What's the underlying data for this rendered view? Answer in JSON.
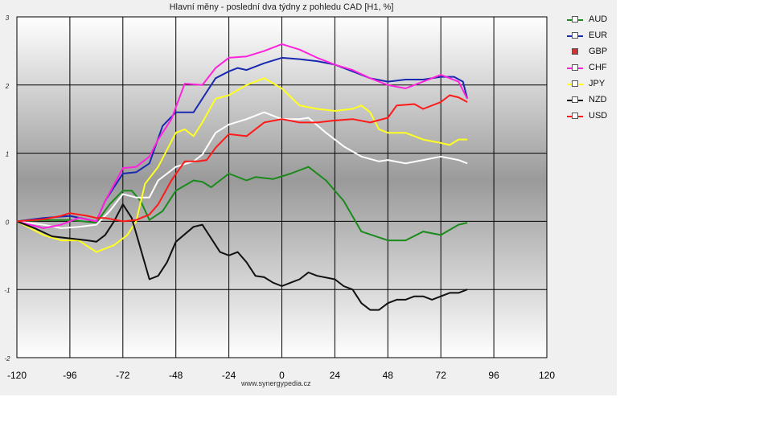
{
  "chart_data": {
    "type": "line",
    "title": "Hlavní měny - poslední dva týdny z pohledu CAD [H1, %]",
    "xlim": [
      -120,
      120
    ],
    "ylim": [
      -2,
      3
    ],
    "x_ticks": [
      -120,
      -96,
      -72,
      -48,
      -24,
      0,
      24,
      48,
      72,
      96,
      120
    ],
    "y_ticks": [
      3,
      2,
      1,
      0,
      -1,
      -2
    ],
    "x_tick_labels": [
      "-120",
      "-96",
      "-72",
      "-48",
      "-24",
      "0",
      "24",
      "48",
      "72",
      "96",
      "120"
    ],
    "y_tick_labels": [
      "3",
      "2",
      "1",
      "0",
      "-1",
      "-2"
    ],
    "grid": true,
    "legend_position": "right",
    "series": [
      {
        "name": "AUD",
        "color": "#1a8a1a",
        "points": [
          [
            -120,
            0
          ],
          [
            -108,
            0.02
          ],
          [
            -96,
            0.02
          ],
          [
            -84,
            -0.02
          ],
          [
            -78,
            0.25
          ],
          [
            -72,
            0.45
          ],
          [
            -68,
            0.45
          ],
          [
            -64,
            0.3
          ],
          [
            -60,
            0.02
          ],
          [
            -54,
            0.15
          ],
          [
            -48,
            0.45
          ],
          [
            -40,
            0.6
          ],
          [
            -36,
            0.58
          ],
          [
            -32,
            0.5
          ],
          [
            -24,
            0.7
          ],
          [
            -16,
            0.6
          ],
          [
            -12,
            0.65
          ],
          [
            -4,
            0.62
          ],
          [
            4,
            0.7
          ],
          [
            12,
            0.8
          ],
          [
            20,
            0.6
          ],
          [
            28,
            0.3
          ],
          [
            36,
            -0.15
          ],
          [
            48,
            -0.28
          ],
          [
            56,
            -0.28
          ],
          [
            64,
            -0.15
          ],
          [
            72,
            -0.2
          ],
          [
            80,
            -0.05
          ],
          [
            84,
            -0.02
          ]
        ]
      },
      {
        "name": "EUR",
        "color": "#1a2ab0",
        "points": [
          [
            -120,
            0
          ],
          [
            -108,
            0.05
          ],
          [
            -96,
            0.08
          ],
          [
            -84,
            0
          ],
          [
            -80,
            0.3
          ],
          [
            -72,
            0.7
          ],
          [
            -66,
            0.72
          ],
          [
            -60,
            0.85
          ],
          [
            -54,
            1.4
          ],
          [
            -48,
            1.6
          ],
          [
            -40,
            1.6
          ],
          [
            -36,
            1.8
          ],
          [
            -30,
            2.1
          ],
          [
            -24,
            2.2
          ],
          [
            -20,
            2.25
          ],
          [
            -16,
            2.22
          ],
          [
            -8,
            2.32
          ],
          [
            0,
            2.4
          ],
          [
            8,
            2.38
          ],
          [
            16,
            2.35
          ],
          [
            24,
            2.3
          ],
          [
            32,
            2.2
          ],
          [
            40,
            2.1
          ],
          [
            48,
            2.05
          ],
          [
            56,
            2.08
          ],
          [
            64,
            2.08
          ],
          [
            72,
            2.12
          ],
          [
            78,
            2.12
          ],
          [
            82,
            2.05
          ],
          [
            84,
            1.8
          ]
        ]
      },
      {
        "name": "GBP",
        "color": "#ffffff",
        "points": [
          [
            -120,
            0
          ],
          [
            -108,
            -0.05
          ],
          [
            -100,
            -0.1
          ],
          [
            -92,
            -0.08
          ],
          [
            -84,
            -0.05
          ],
          [
            -78,
            0.15
          ],
          [
            -72,
            0.4
          ],
          [
            -66,
            0.35
          ],
          [
            -60,
            0.35
          ],
          [
            -56,
            0.6
          ],
          [
            -48,
            0.8
          ],
          [
            -40,
            0.88
          ],
          [
            -36,
            0.98
          ],
          [
            -30,
            1.3
          ],
          [
            -24,
            1.42
          ],
          [
            -16,
            1.5
          ],
          [
            -8,
            1.6
          ],
          [
            0,
            1.5
          ],
          [
            8,
            1.5
          ],
          [
            12,
            1.52
          ],
          [
            20,
            1.3
          ],
          [
            28,
            1.1
          ],
          [
            36,
            0.95
          ],
          [
            44,
            0.88
          ],
          [
            48,
            0.9
          ],
          [
            56,
            0.85
          ],
          [
            64,
            0.9
          ],
          [
            72,
            0.95
          ],
          [
            80,
            0.9
          ],
          [
            84,
            0.85
          ]
        ]
      },
      {
        "name": "CHF",
        "color": "#ff22dd",
        "points": [
          [
            -120,
            0
          ],
          [
            -108,
            -0.1
          ],
          [
            -100,
            -0.05
          ],
          [
            -92,
            0.05
          ],
          [
            -84,
            0
          ],
          [
            -80,
            0.3
          ],
          [
            -72,
            0.78
          ],
          [
            -66,
            0.8
          ],
          [
            -60,
            0.95
          ],
          [
            -56,
            1.2
          ],
          [
            -50,
            1.5
          ],
          [
            -44,
            2.02
          ],
          [
            -36,
            2.0
          ],
          [
            -30,
            2.25
          ],
          [
            -24,
            2.4
          ],
          [
            -16,
            2.42
          ],
          [
            -8,
            2.5
          ],
          [
            0,
            2.6
          ],
          [
            8,
            2.52
          ],
          [
            16,
            2.4
          ],
          [
            24,
            2.3
          ],
          [
            32,
            2.22
          ],
          [
            40,
            2.1
          ],
          [
            48,
            2.0
          ],
          [
            56,
            1.95
          ],
          [
            64,
            2.05
          ],
          [
            72,
            2.15
          ],
          [
            80,
            2.05
          ],
          [
            84,
            1.8
          ]
        ]
      },
      {
        "name": "JPY",
        "color": "#ffff22",
        "points": [
          [
            -120,
            0
          ],
          [
            -108,
            -0.2
          ],
          [
            -100,
            -0.28
          ],
          [
            -92,
            -0.28
          ],
          [
            -84,
            -0.45
          ],
          [
            -76,
            -0.35
          ],
          [
            -70,
            -0.2
          ],
          [
            -66,
            0
          ],
          [
            -62,
            0.55
          ],
          [
            -56,
            0.8
          ],
          [
            -48,
            1.3
          ],
          [
            -44,
            1.35
          ],
          [
            -40,
            1.25
          ],
          [
            -36,
            1.45
          ],
          [
            -30,
            1.8
          ],
          [
            -24,
            1.85
          ],
          [
            -16,
            2.0
          ],
          [
            -8,
            2.1
          ],
          [
            0,
            1.95
          ],
          [
            8,
            1.7
          ],
          [
            16,
            1.65
          ],
          [
            24,
            1.62
          ],
          [
            32,
            1.65
          ],
          [
            36,
            1.7
          ],
          [
            40,
            1.6
          ],
          [
            44,
            1.35
          ],
          [
            48,
            1.3
          ],
          [
            56,
            1.3
          ],
          [
            64,
            1.2
          ],
          [
            72,
            1.15
          ],
          [
            76,
            1.12
          ],
          [
            80,
            1.2
          ],
          [
            84,
            1.2
          ]
        ]
      },
      {
        "name": "NZD",
        "color": "#111111",
        "points": [
          [
            -120,
            0
          ],
          [
            -112,
            -0.1
          ],
          [
            -104,
            -0.22
          ],
          [
            -96,
            -0.25
          ],
          [
            -88,
            -0.28
          ],
          [
            -84,
            -0.3
          ],
          [
            -80,
            -0.2
          ],
          [
            -76,
            0
          ],
          [
            -72,
            0.25
          ],
          [
            -68,
            0.05
          ],
          [
            -64,
            -0.4
          ],
          [
            -60,
            -0.85
          ],
          [
            -56,
            -0.8
          ],
          [
            -52,
            -0.6
          ],
          [
            -48,
            -0.3
          ],
          [
            -40,
            -0.08
          ],
          [
            -36,
            -0.05
          ],
          [
            -32,
            -0.25
          ],
          [
            -28,
            -0.45
          ],
          [
            -24,
            -0.5
          ],
          [
            -20,
            -0.45
          ],
          [
            -16,
            -0.6
          ],
          [
            -12,
            -0.8
          ],
          [
            -8,
            -0.82
          ],
          [
            -4,
            -0.9
          ],
          [
            0,
            -0.95
          ],
          [
            4,
            -0.9
          ],
          [
            8,
            -0.85
          ],
          [
            12,
            -0.75
          ],
          [
            16,
            -0.8
          ],
          [
            24,
            -0.85
          ],
          [
            28,
            -0.95
          ],
          [
            32,
            -1.0
          ],
          [
            36,
            -1.2
          ],
          [
            40,
            -1.3
          ],
          [
            44,
            -1.3
          ],
          [
            48,
            -1.2
          ],
          [
            52,
            -1.15
          ],
          [
            56,
            -1.15
          ],
          [
            60,
            -1.1
          ],
          [
            64,
            -1.1
          ],
          [
            68,
            -1.15
          ],
          [
            72,
            -1.1
          ],
          [
            76,
            -1.05
          ],
          [
            80,
            -1.05
          ],
          [
            84,
            -1.0
          ]
        ]
      },
      {
        "name": "USD",
        "color": "#ff1a1a",
        "points": [
          [
            -120,
            0
          ],
          [
            -108,
            0.03
          ],
          [
            -100,
            0.08
          ],
          [
            -96,
            0.12
          ],
          [
            -88,
            0.08
          ],
          [
            -84,
            0.05
          ],
          [
            -80,
            0.05
          ],
          [
            -72,
            0
          ],
          [
            -66,
            0.02
          ],
          [
            -60,
            0.1
          ],
          [
            -56,
            0.25
          ],
          [
            -50,
            0.6
          ],
          [
            -44,
            0.88
          ],
          [
            -38,
            0.88
          ],
          [
            -34,
            0.9
          ],
          [
            -30,
            1.08
          ],
          [
            -24,
            1.28
          ],
          [
            -16,
            1.25
          ],
          [
            -8,
            1.45
          ],
          [
            0,
            1.5
          ],
          [
            8,
            1.45
          ],
          [
            16,
            1.45
          ],
          [
            24,
            1.48
          ],
          [
            32,
            1.5
          ],
          [
            40,
            1.45
          ],
          [
            48,
            1.52
          ],
          [
            52,
            1.7
          ],
          [
            60,
            1.72
          ],
          [
            64,
            1.65
          ],
          [
            72,
            1.75
          ],
          [
            76,
            1.85
          ],
          [
            80,
            1.82
          ],
          [
            84,
            1.75
          ]
        ]
      }
    ],
    "watermark": "www.synergypedia.cz"
  }
}
